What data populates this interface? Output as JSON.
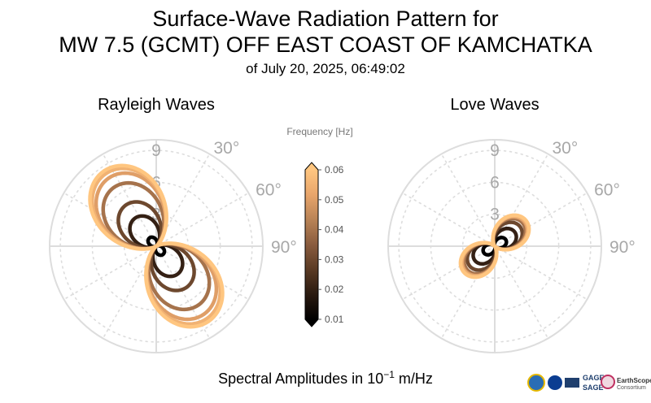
{
  "title": {
    "line1": "Surface-Wave Radiation Pattern for",
    "line2": "MW 7.5 (GCMT) OFF EAST COAST OF KAMCHATKA",
    "line3": "of July 20, 2025, 06:49:02"
  },
  "colors": {
    "grid": "#dddddd",
    "angle_label": "#a8a8a8",
    "colormap": [
      "#000000",
      "#2a1a10",
      "#5a3a24",
      "#8a5c3e",
      "#b98356",
      "#e8a56b",
      "#ffc680"
    ]
  },
  "footer": {
    "prefix": "Spectral Amplitudes in ",
    "base": "10",
    "exponent": "−1",
    "unit": " m/Hz"
  },
  "logos": {
    "gage": "GAGE",
    "sage": "SAGE",
    "earthscope": "EarthScope",
    "consortium": "Consortium"
  },
  "chart_data": [
    {
      "type": "polar",
      "title": "Rayleigh Waves",
      "radial_ticks": [
        "3",
        "6",
        "9"
      ],
      "rlim": [
        0,
        10
      ],
      "angle_ticks": [
        "30°",
        "60°",
        "90°"
      ],
      "angle_tick_values_deg": [
        30,
        60,
        90
      ],
      "orientation": "clockwise from north",
      "grid": true,
      "series": [
        {
          "frequency": 0.01,
          "peak": 1.0,
          "max_azimuth_deg": 140
        },
        {
          "frequency": 0.02,
          "peak": 3.3,
          "max_azimuth_deg": 142
        },
        {
          "frequency": 0.03,
          "peak": 4.8,
          "max_azimuth_deg": 143
        },
        {
          "frequency": 0.04,
          "peak": 6.8,
          "max_azimuth_deg": 144
        },
        {
          "frequency": 0.05,
          "peak": 7.8,
          "max_azimuth_deg": 145
        },
        {
          "frequency": 0.055,
          "peak": 8.3,
          "max_azimuth_deg": 145
        },
        {
          "frequency": 0.06,
          "peak": 8.6,
          "max_azimuth_deg": 145
        }
      ]
    },
    {
      "type": "polar",
      "title": "Love Waves",
      "radial_ticks": [
        "3",
        "6",
        "9"
      ],
      "rlim": [
        0,
        10
      ],
      "angle_ticks": [
        "30°",
        "60°",
        "90°"
      ],
      "angle_tick_values_deg": [
        30,
        60,
        90
      ],
      "orientation": "clockwise from north",
      "grid": true,
      "series": [
        {
          "frequency": 0.01,
          "peak": 1.2,
          "max_azimuth_deg": 60
        },
        {
          "frequency": 0.02,
          "peak": 2.3,
          "max_azimuth_deg": 55
        },
        {
          "frequency": 0.03,
          "peak": 3.0,
          "max_azimuth_deg": 52
        },
        {
          "frequency": 0.04,
          "peak": 3.4,
          "max_azimuth_deg": 50
        },
        {
          "frequency": 0.05,
          "peak": 3.6,
          "max_azimuth_deg": 50
        },
        {
          "frequency": 0.055,
          "peak": 3.7,
          "max_azimuth_deg": 50
        },
        {
          "frequency": 0.06,
          "peak": 3.8,
          "max_azimuth_deg": 50
        }
      ]
    },
    {
      "type": "colorbar",
      "label": "Frequency [Hz]",
      "ticks": [
        "0.06",
        "0.05",
        "0.04",
        "0.03",
        "0.02",
        "0.01"
      ],
      "tick_values": [
        0.06,
        0.05,
        0.04,
        0.03,
        0.02,
        0.01
      ],
      "range": [
        0.01,
        0.06
      ],
      "extend": "both"
    }
  ]
}
